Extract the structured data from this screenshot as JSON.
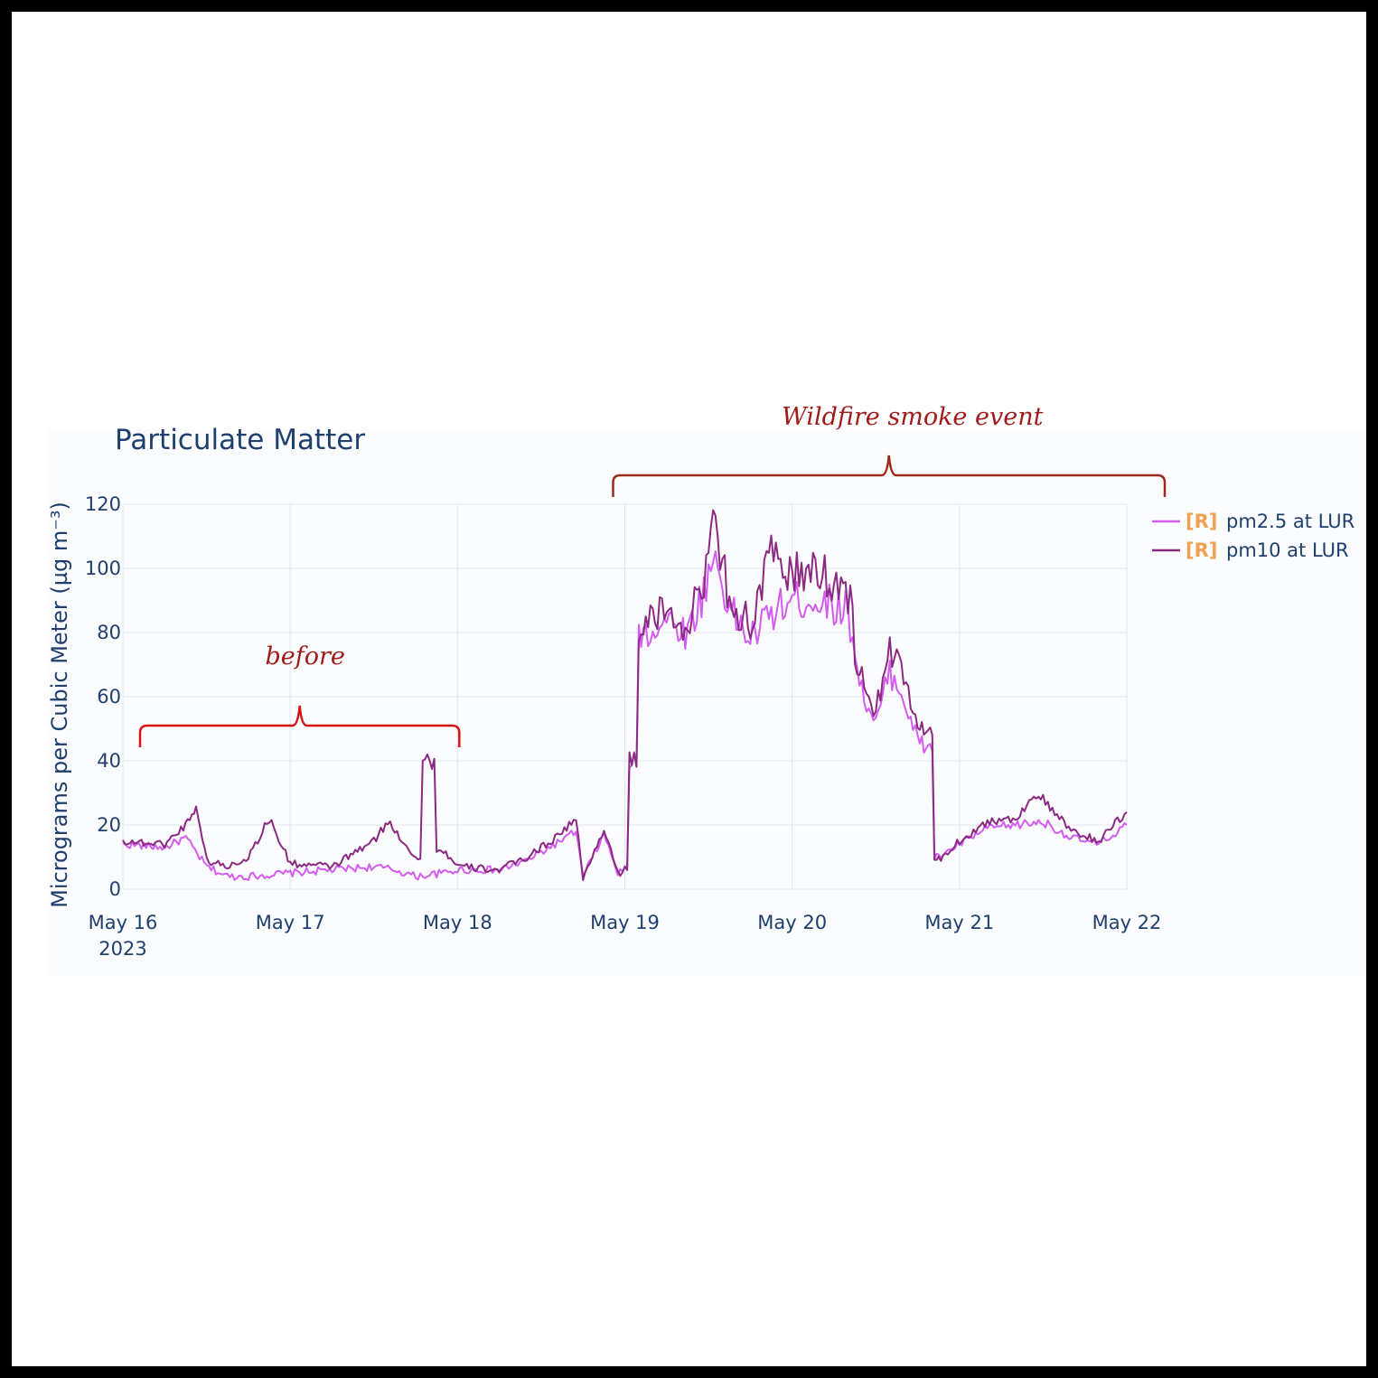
{
  "chart_data": {
    "type": "line",
    "title": "Particulate Matter",
    "ylabel": "Micrograms per Cubic Meter (µg m⁻³)",
    "xlabel": "",
    "ylim": [
      0,
      125
    ],
    "y_ticks": [
      "0",
      "20",
      "40",
      "60",
      "80",
      "100",
      "120"
    ],
    "x_ticks": [
      "May 16",
      "May 17",
      "May 18",
      "May 19",
      "May 20",
      "May 21",
      "May 22"
    ],
    "x_tick_year": "2023",
    "xlim": [
      "2023-05-16 00:00",
      "2023-05-22 00:00"
    ],
    "grid": true,
    "legend_position": "right",
    "series": [
      {
        "name": "pm2.5 at LUR",
        "tag": "[R]",
        "color": "#d35cf2",
        "points": [
          [
            "2023-05-16 00:00",
            14
          ],
          [
            "2023-05-16 06:00",
            13
          ],
          [
            "2023-05-16 09:00",
            16
          ],
          [
            "2023-05-16 12:00",
            7
          ],
          [
            "2023-05-16 15:00",
            4
          ],
          [
            "2023-05-16 18:00",
            4
          ],
          [
            "2023-05-17 00:00",
            5
          ],
          [
            "2023-05-17 06:00",
            6
          ],
          [
            "2023-05-17 12:00",
            7
          ],
          [
            "2023-05-17 15:00",
            6
          ],
          [
            "2023-05-17 18:00",
            4
          ],
          [
            "2023-05-17 22:00",
            5
          ],
          [
            "2023-05-18 00:00",
            6
          ],
          [
            "2023-05-18 06:00",
            6
          ],
          [
            "2023-05-18 10:00",
            9
          ],
          [
            "2023-05-18 14:00",
            14
          ],
          [
            "2023-05-18 17:00",
            18
          ],
          [
            "2023-05-18 18:00",
            4
          ],
          [
            "2023-05-18 21:00",
            17
          ],
          [
            "2023-05-18 23:00",
            5
          ],
          [
            "2023-05-19 00:00",
            6
          ],
          [
            "2023-05-19 01:00",
            40
          ],
          [
            "2023-05-19 03:00",
            80
          ],
          [
            "2023-05-19 06:00",
            84
          ],
          [
            "2023-05-19 09:00",
            80
          ],
          [
            "2023-05-19 11:00",
            91
          ],
          [
            "2023-05-19 13:00",
            104
          ],
          [
            "2023-05-19 15:00",
            87
          ],
          [
            "2023-05-19 18:00",
            78
          ],
          [
            "2023-05-19 21:00",
            86
          ],
          [
            "2023-05-20 00:00",
            90
          ],
          [
            "2023-05-20 04:00",
            90
          ],
          [
            "2023-05-20 08:00",
            87
          ],
          [
            "2023-05-20 10:00",
            62
          ],
          [
            "2023-05-20 12:00",
            51
          ],
          [
            "2023-05-20 14:00",
            68
          ],
          [
            "2023-05-20 16:00",
            60
          ],
          [
            "2023-05-20 18:00",
            46
          ],
          [
            "2023-05-20 19:30",
            44
          ],
          [
            "2023-05-20 21:00",
            10
          ],
          [
            "2023-05-21 00:00",
            14
          ],
          [
            "2023-05-21 04:00",
            19
          ],
          [
            "2023-05-21 08:00",
            20
          ],
          [
            "2023-05-21 12:00",
            21
          ],
          [
            "2023-05-21 16:00",
            16
          ],
          [
            "2023-05-21 20:00",
            14
          ],
          [
            "2023-05-22 00:00",
            20
          ]
        ]
      },
      {
        "name": "pm10 at LUR",
        "tag": "[R]",
        "color": "#8a2a82",
        "points": [
          [
            "2023-05-16 00:00",
            15
          ],
          [
            "2023-05-16 06:00",
            14
          ],
          [
            "2023-05-16 09:00",
            20
          ],
          [
            "2023-05-16 10:30",
            26
          ],
          [
            "2023-05-16 12:00",
            9
          ],
          [
            "2023-05-16 15:00",
            7
          ],
          [
            "2023-05-16 18:00",
            10
          ],
          [
            "2023-05-16 21:00",
            22
          ],
          [
            "2023-05-17 00:00",
            8
          ],
          [
            "2023-05-17 06:00",
            7
          ],
          [
            "2023-05-17 12:00",
            15
          ],
          [
            "2023-05-17 14:00",
            21
          ],
          [
            "2023-05-17 18:00",
            10
          ],
          [
            "2023-05-17 20:00",
            40
          ],
          [
            "2023-05-17 22:00",
            12
          ],
          [
            "2023-05-18 00:00",
            7
          ],
          [
            "2023-05-18 06:00",
            6
          ],
          [
            "2023-05-18 10:00",
            10
          ],
          [
            "2023-05-18 14:00",
            16
          ],
          [
            "2023-05-18 17:00",
            22
          ],
          [
            "2023-05-18 18:00",
            3
          ],
          [
            "2023-05-18 21:00",
            19
          ],
          [
            "2023-05-18 23:00",
            5
          ],
          [
            "2023-05-19 00:00",
            6
          ],
          [
            "2023-05-19 01:00",
            40
          ],
          [
            "2023-05-19 03:00",
            82
          ],
          [
            "2023-05-19 06:00",
            87
          ],
          [
            "2023-05-19 09:00",
            82
          ],
          [
            "2023-05-19 11:00",
            94
          ],
          [
            "2023-05-19 13:00",
            115
          ],
          [
            "2023-05-19 15:00",
            90
          ],
          [
            "2023-05-19 18:00",
            82
          ],
          [
            "2023-05-19 21:00",
            104
          ],
          [
            "2023-05-20 00:00",
            98
          ],
          [
            "2023-05-20 04:00",
            99
          ],
          [
            "2023-05-20 08:00",
            92
          ],
          [
            "2023-05-20 10:00",
            66
          ],
          [
            "2023-05-20 12:00",
            55
          ],
          [
            "2023-05-20 14:00",
            76
          ],
          [
            "2023-05-20 16:00",
            65
          ],
          [
            "2023-05-20 18:00",
            52
          ],
          [
            "2023-05-20 19:30",
            48
          ],
          [
            "2023-05-20 21:00",
            9
          ],
          [
            "2023-05-21 00:00",
            15
          ],
          [
            "2023-05-21 04:00",
            21
          ],
          [
            "2023-05-21 08:00",
            22
          ],
          [
            "2023-05-21 11:00",
            30
          ],
          [
            "2023-05-21 16:00",
            18
          ],
          [
            "2023-05-21 20:00",
            15
          ],
          [
            "2023-05-22 00:00",
            24
          ]
        ]
      }
    ],
    "annotations": [
      {
        "text": "before",
        "start": "2023-05-16 00:00",
        "end": "2023-05-18 00:00",
        "level": 51
      },
      {
        "text": "Wildfire smoke event",
        "start": "2023-05-19 00:00",
        "end": "2023-05-22 00:00",
        "level": 129
      }
    ]
  }
}
